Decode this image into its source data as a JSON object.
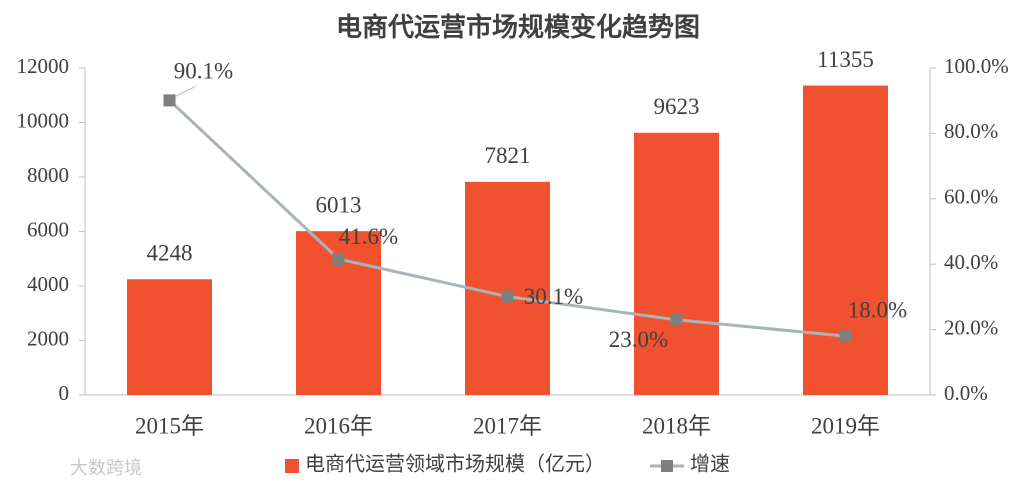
{
  "chart_data": {
    "type": "combo",
    "title": "电商代运营市场规模变化趋势图",
    "categories": [
      "2015年",
      "2016年",
      "2017年",
      "2018年",
      "2019年"
    ],
    "series": [
      {
        "name": "电商代运营领域市场规模（亿元）",
        "type": "bar",
        "axis": "y",
        "color": "#f0522f",
        "values": [
          4248,
          6013,
          7821,
          9623,
          11355
        ]
      },
      {
        "name": "增速",
        "type": "line",
        "axis": "y2",
        "color": "#a9b4b9",
        "marker_color": "#7f7f7f",
        "values": [
          90.1,
          41.6,
          30.1,
          23.0,
          18.0
        ],
        "value_labels": [
          "90.1%",
          "41.6%",
          "30.1%",
          "23.0%",
          "18.0%"
        ]
      }
    ],
    "ylim": [
      0,
      12000
    ],
    "yticks": [
      0,
      2000,
      4000,
      6000,
      8000,
      10000,
      12000
    ],
    "y2lim": [
      0,
      100
    ],
    "y2ticks": [
      {
        "value": 0,
        "label": "0.0%"
      },
      {
        "value": 20,
        "label": "20.0%"
      },
      {
        "value": 40,
        "label": "40.0%"
      },
      {
        "value": 60,
        "label": "60.0%"
      },
      {
        "value": 80,
        "label": "80.0%"
      },
      {
        "value": 100,
        "label": "100.0%"
      }
    ],
    "legend": "bottom",
    "watermark": "大数跨境"
  }
}
